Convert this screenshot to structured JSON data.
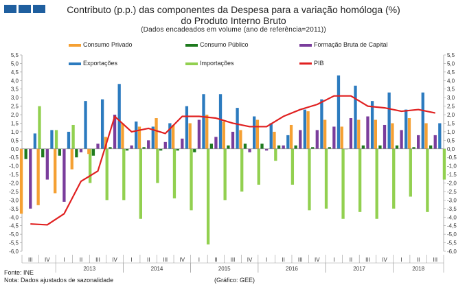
{
  "header": {
    "title_line1": "Contributo (p.p.) das componentes da Despesa para a variação homóloga (%)",
    "title_line2": "do Produto Interno Bruto",
    "subtitle": "(Dados encadeados em volume (ano de referência=2011))"
  },
  "footer": {
    "source": "Fonte: INE",
    "note": "Nota: Dados ajustados de sazonalidade",
    "credit": "(Gráfico: GEE)"
  },
  "colors": {
    "consumo_privado": "#f5a033",
    "consumo_publico": "#1e7a1e",
    "fbc": "#7a3d9c",
    "exportacoes": "#2c7bbf",
    "importacoes": "#92d050",
    "pib": "#e02020"
  },
  "chart_data": {
    "type": "bar",
    "title": "Contributo (p.p.) das componentes da Despesa para a variação homóloga (%) do Produto Interno Bruto",
    "ylim": [
      -6.0,
      5.5
    ],
    "yticks": [
      "5,5",
      "5,0",
      "4,5",
      "4,0",
      "3,5",
      "3,0",
      "2,5",
      "2,0",
      "1,5",
      "1,0",
      "0,5",
      "0,0",
      "-0,5",
      "-1,0",
      "-1,5",
      "-2,0",
      "-2,5",
      "-3,0",
      "-3,5",
      "-4,0",
      "-4,5",
      "-5,0",
      "-5,5",
      "-6,0"
    ],
    "categories": [
      "III",
      "IV",
      "I",
      "II",
      "III",
      "IV",
      "I",
      "II",
      "III",
      "IV",
      "I",
      "II",
      "III",
      "IV",
      "I",
      "II",
      "III",
      "IV",
      "I",
      "II",
      "III",
      "IV",
      "I",
      "II",
      "III"
    ],
    "years": [
      {
        "label": "2013",
        "start": 2,
        "end": 5
      },
      {
        "label": "2014",
        "start": 6,
        "end": 9
      },
      {
        "label": "2015",
        "start": 10,
        "end": 13
      },
      {
        "label": "2016",
        "start": 14,
        "end": 17
      },
      {
        "label": "2017",
        "start": 18,
        "end": 21
      },
      {
        "label": "2018",
        "start": 22,
        "end": 24
      }
    ],
    "series": [
      {
        "name": "Consumo Privado",
        "key": "consumo_privado",
        "kind": "bar",
        "values": [
          -3.8,
          -3.3,
          -2.6,
          -1.2,
          -0.3,
          0.7,
          1.5,
          1.3,
          1.8,
          1.4,
          1.5,
          2.0,
          1.6,
          1.1,
          1.7,
          1.0,
          1.4,
          2.2,
          1.7,
          1.3,
          1.7,
          1.7,
          1.5,
          1.8,
          1.5
        ]
      },
      {
        "name": "Consumo Público",
        "key": "consumo_publico",
        "kind": "bar",
        "values": [
          -0.6,
          -0.5,
          -0.4,
          -0.5,
          -0.4,
          0.1,
          -0.1,
          0.1,
          -0.1,
          -0.1,
          -0.2,
          0.3,
          0.2,
          0.3,
          0.3,
          0.2,
          0.2,
          0.1,
          0.1,
          0.0,
          0.2,
          0.2,
          0.2,
          0.1,
          0.2
        ]
      },
      {
        "name": "Formação Bruta de Capital",
        "key": "fbc",
        "kind": "bar",
        "values": [
          -3.5,
          -1.8,
          -3.1,
          -0.2,
          0.3,
          2.0,
          0.2,
          0.5,
          0.4,
          0.6,
          1.7,
          0.7,
          1.0,
          -0.2,
          -0.1,
          0.2,
          1.1,
          1.1,
          1.3,
          1.8,
          1.9,
          1.4,
          1.1,
          0.8,
          0.8
        ]
      },
      {
        "name": "Exportações",
        "key": "exportacoes",
        "kind": "bar",
        "values": [
          0.9,
          1.1,
          1.0,
          2.8,
          2.9,
          3.8,
          1.6,
          1.3,
          1.5,
          2.5,
          3.2,
          3.2,
          2.4,
          1.9,
          1.5,
          0.8,
          2.3,
          2.9,
          4.3,
          3.7,
          2.8,
          3.3,
          2.3,
          3.3,
          1.5
        ]
      },
      {
        "name": "Importações",
        "key": "importacoes",
        "kind": "bar",
        "values": [
          2.5,
          1.1,
          1.4,
          -2.0,
          -3.0,
          -3.0,
          -4.1,
          -2.0,
          -2.9,
          -3.6,
          -5.6,
          -3.0,
          -2.5,
          -2.1,
          -0.7,
          -2.1,
          -3.6,
          -3.5,
          -4.1,
          -3.7,
          -4.1,
          -3.5,
          -2.8,
          -3.7,
          -1.8
        ]
      },
      {
        "name": "PIB",
        "key": "pib",
        "kind": "line",
        "values": [
          -4.4,
          -4.45,
          -3.8,
          -1.9,
          -1.3,
          1.9,
          1.0,
          1.2,
          0.9,
          1.9,
          1.9,
          1.8,
          1.5,
          1.3,
          1.3,
          1.9,
          2.3,
          2.6,
          3.1,
          3.1,
          2.5,
          2.4,
          2.2,
          2.3,
          2.1
        ]
      }
    ],
    "legend_placement": "top, two rows",
    "grid": false
  }
}
